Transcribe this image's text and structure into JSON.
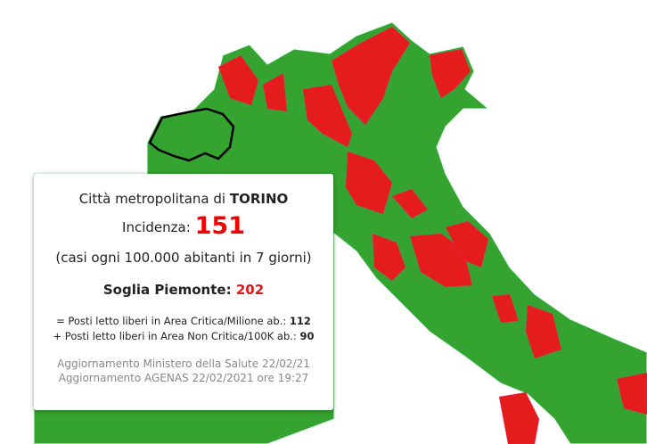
{
  "colors": {
    "below_threshold": "#35a32f",
    "above_threshold": "#e41c1c",
    "selected_border": "#000000",
    "value": "#f40000"
  },
  "tooltip": {
    "area_prefix": "Città metropolitana di",
    "area_name": "TORINO",
    "incidence_label": "Incidenza:",
    "incidence_value": "151",
    "incidence_note": "(casi ogni 100.000 abitanti in 7 giorni)",
    "threshold_label": "Soglia Piemonte:",
    "threshold_value": "202",
    "critical_beds_label": "= Posti letto liberi in Area Critica/Milione ab.:",
    "critical_beds_value": "112",
    "noncritical_beds_label": "+ Posti letto liberi in Area Non Critica/100K ab.:",
    "noncritical_beds_value": "90",
    "update_ministry": "Aggiornamento Ministero della Salute 22/02/21",
    "update_agenas": "Aggiornamento AGENAS 22/02/2021 ore 19:27"
  }
}
